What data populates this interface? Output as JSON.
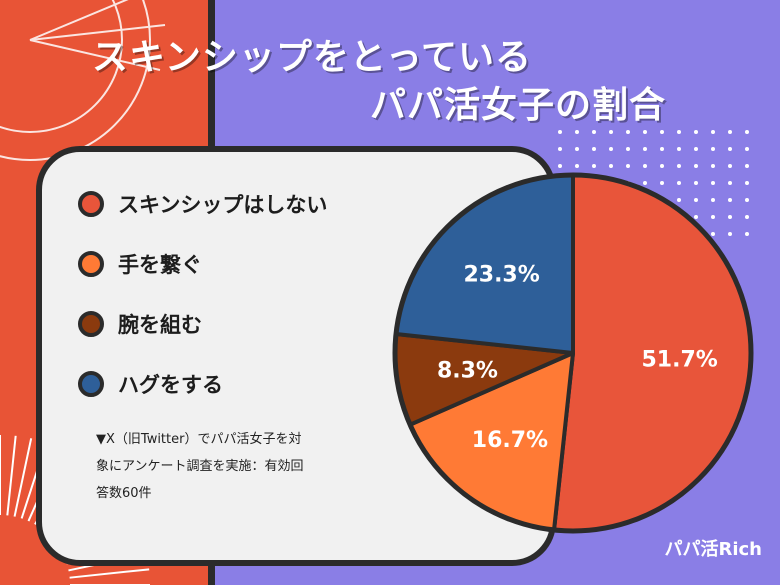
{
  "colors": {
    "left_band": "#e85436",
    "background": "#8a7ee6",
    "panel": "#f1f1f1",
    "border": "#2b2b2b"
  },
  "title": {
    "line1": "スキンシップをとっている",
    "line2": "パパ活女子の割合"
  },
  "chart_data": {
    "type": "pie",
    "slices": [
      {
        "label": "スキンシップはしない",
        "value": 51.7,
        "value_label": "51.7%",
        "color": "#e8553a"
      },
      {
        "label": "手を繋ぐ",
        "value": 16.7,
        "value_label": "16.7%",
        "color": "#ff7a35"
      },
      {
        "label": "腕を組む",
        "value": 8.3,
        "value_label": "8.3%",
        "color": "#8b3a0e"
      },
      {
        "label": "ハグをする",
        "value": 23.3,
        "value_label": "23.3%",
        "color": "#2e5f99"
      }
    ],
    "start": "12 o'clock",
    "direction": "clockwise",
    "legend_position": "left"
  },
  "note": {
    "line1": "▼X（旧Twitter）でパパ活女子を対",
    "line2": "象にアンケート調査を実施：有効回",
    "line3": "答数60件"
  },
  "brand": "パパ活Rich"
}
